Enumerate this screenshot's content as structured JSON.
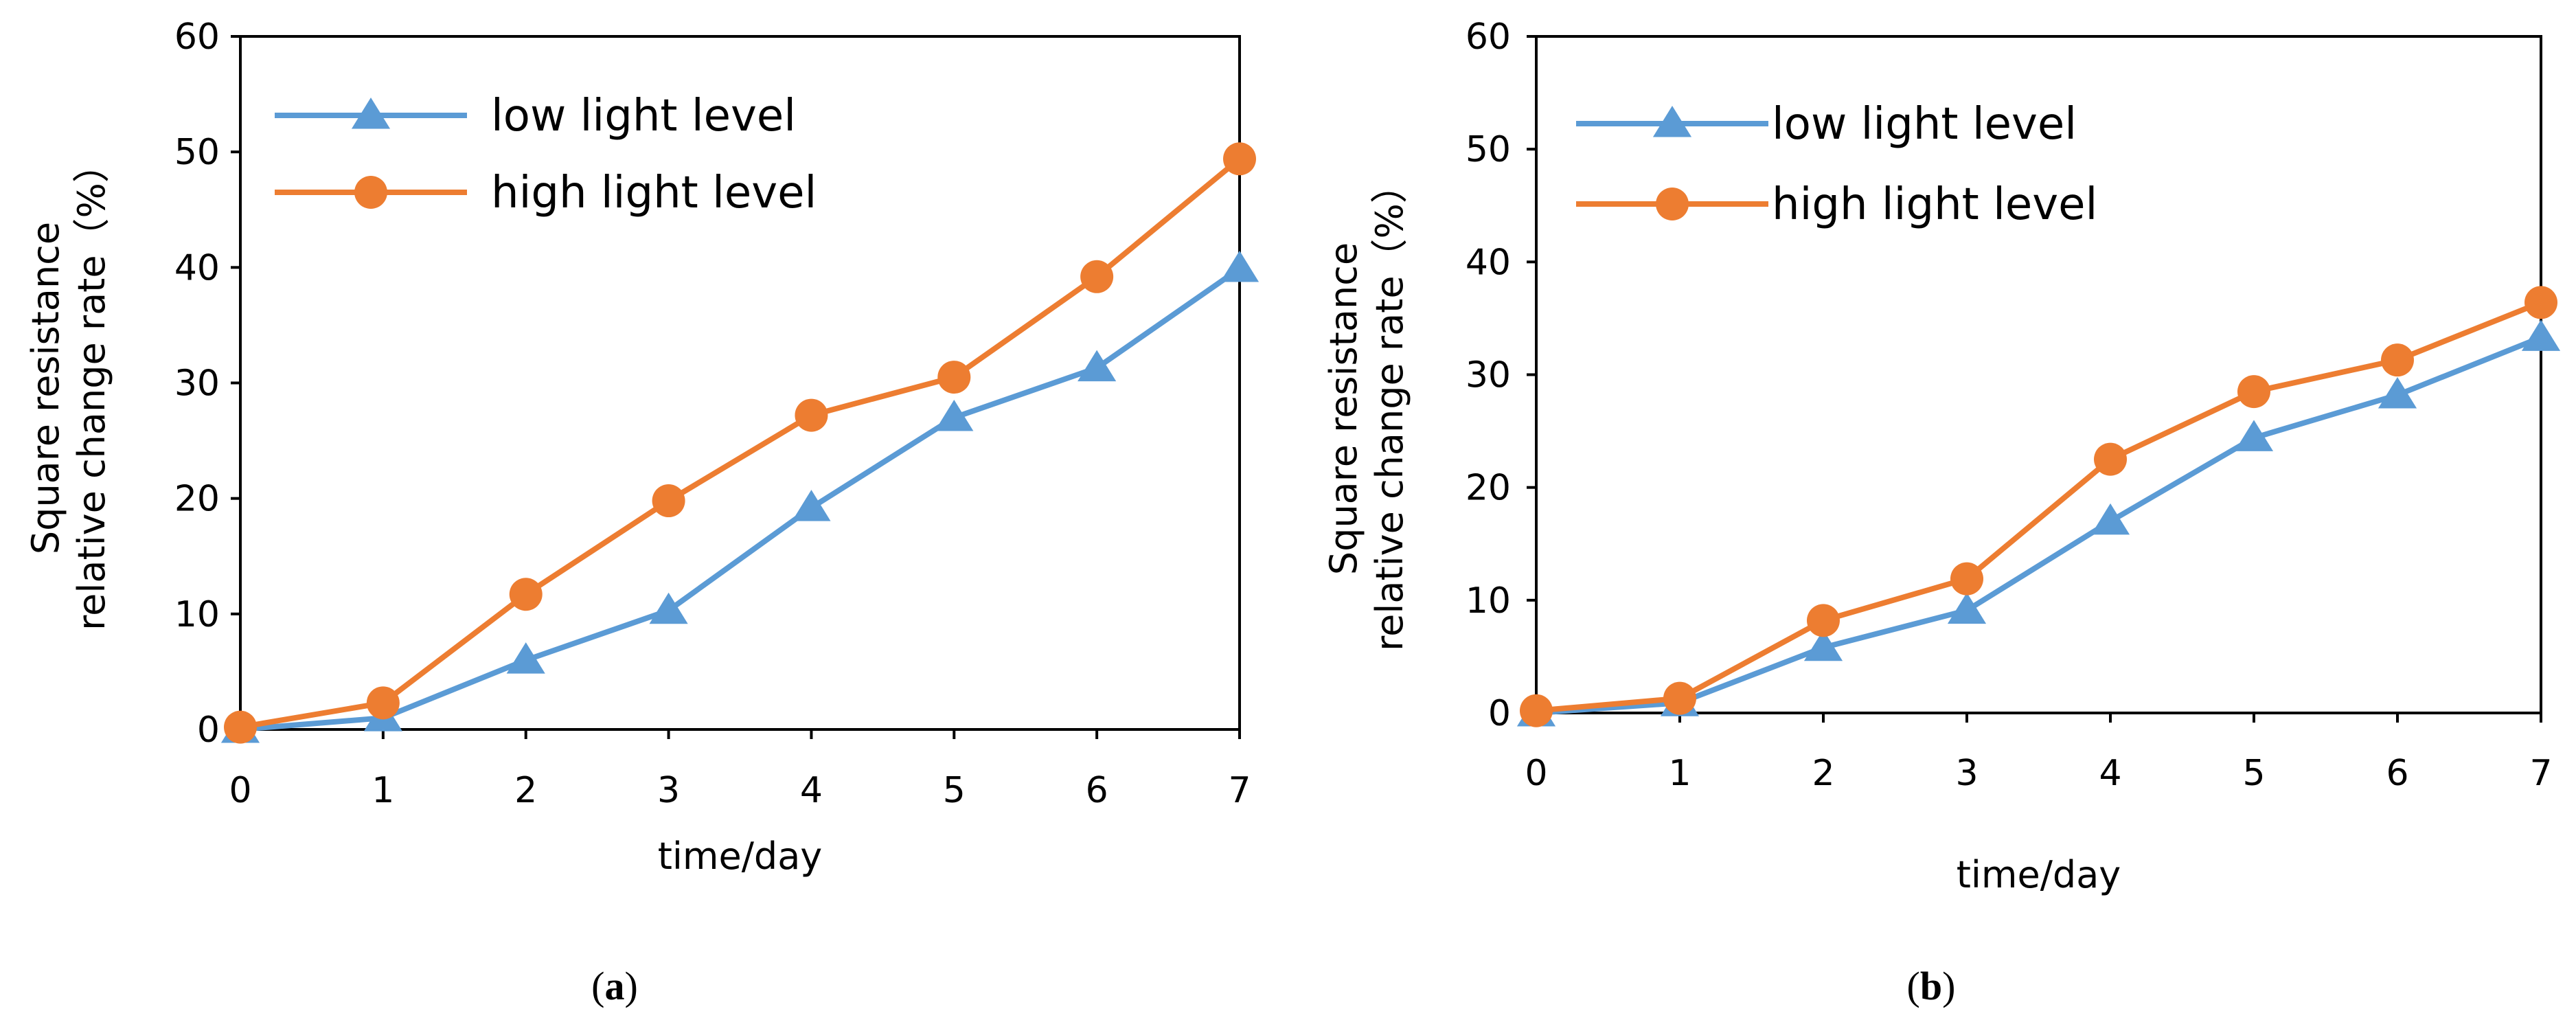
{
  "colors": {
    "low": "#5b9bd5",
    "high": "#ed7d31",
    "axis": "#000000"
  },
  "chart_data": [
    {
      "type": "line",
      "panel": "a",
      "panel_label": {
        "open": "(",
        "letter": "a",
        "close": ")"
      },
      "xlabel": "time/day",
      "ylabel_lines": [
        "Square resistance",
        "relative change rate（%）"
      ],
      "x": [
        0,
        1,
        2,
        3,
        4,
        5,
        6,
        7
      ],
      "xlim": [
        0,
        7
      ],
      "ylim": [
        0,
        60
      ],
      "yticks": [
        0,
        10,
        20,
        30,
        40,
        50,
        60
      ],
      "legend_position": "top-left",
      "series": [
        {
          "name": "low light level",
          "marker": "triangle",
          "color_key": "low",
          "values": [
            0,
            1,
            6,
            10.3,
            19.2,
            27,
            31.3,
            39.9
          ]
        },
        {
          "name": "high light level",
          "marker": "circle",
          "color_key": "high",
          "values": [
            0.2,
            2.3,
            11.7,
            19.8,
            27.2,
            30.5,
            39.2,
            49.4
          ]
        }
      ]
    },
    {
      "type": "line",
      "panel": "b",
      "panel_label": {
        "open": "(",
        "letter": "b",
        "close": ")"
      },
      "xlabel": "time/day",
      "ylabel_lines": [
        "Square resistance",
        "relative change rate（%）"
      ],
      "x": [
        0,
        1,
        2,
        3,
        4,
        5,
        6,
        7
      ],
      "xlim": [
        0,
        7
      ],
      "ylim": [
        0,
        60
      ],
      "yticks": [
        0,
        10,
        20,
        30,
        40,
        50,
        60
      ],
      "legend_position": "top-left",
      "series": [
        {
          "name": "low light level",
          "marker": "triangle",
          "color_key": "low",
          "values": [
            0,
            0.9,
            5.8,
            9.1,
            17,
            24.4,
            28.2,
            33.3
          ]
        },
        {
          "name": "high light level",
          "marker": "circle",
          "color_key": "high",
          "values": [
            0.2,
            1.3,
            8.2,
            11.9,
            22.5,
            28.5,
            31.3,
            36.4
          ]
        }
      ]
    }
  ]
}
